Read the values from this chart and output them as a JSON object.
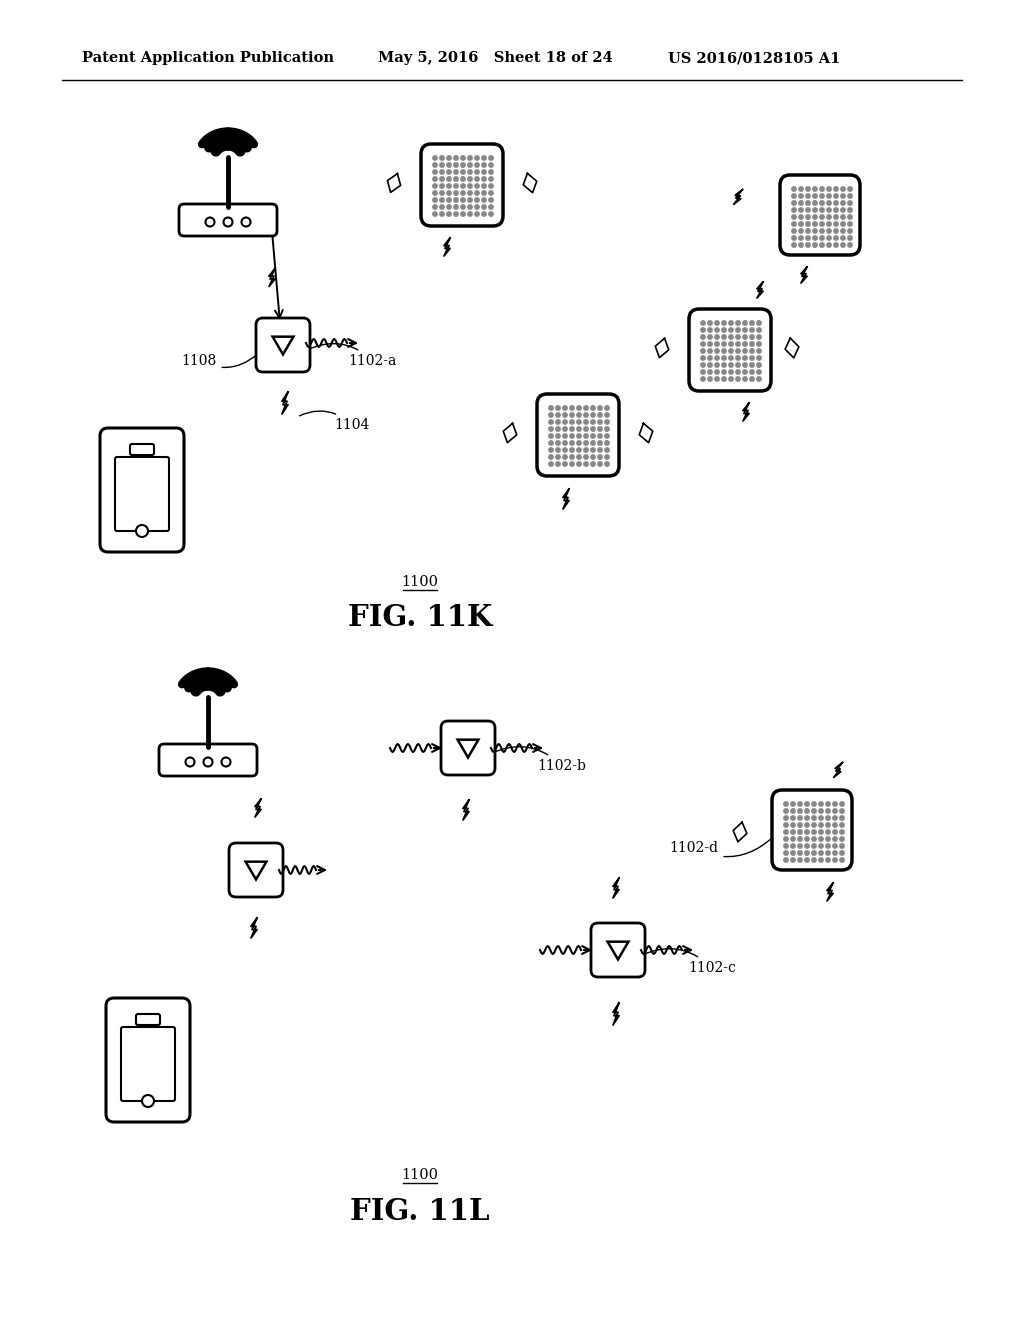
{
  "header_left": "Patent Application Publication",
  "header_mid": "May 5, 2016   Sheet 18 of 24",
  "header_right": "US 2016/0128105 A1",
  "fig1_label": "1100",
  "fig1_name": "FIG. 11K",
  "fig2_label": "1100",
  "fig2_name": "FIG. 11L",
  "background": "#ffffff",
  "line_color": "#000000"
}
